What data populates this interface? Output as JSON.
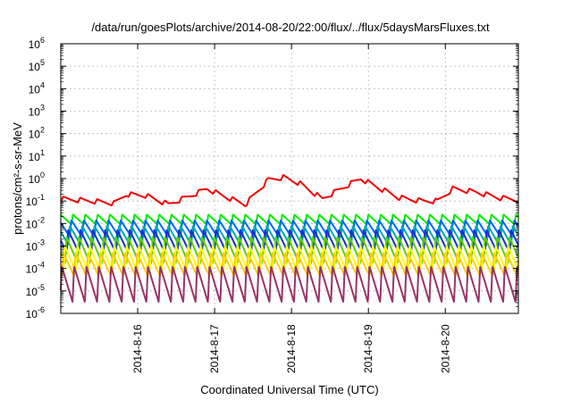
{
  "chart_data": {
    "type": "line",
    "title": "/data/run/goesPlots/archive/2014-08-20/22:00/flux/../flux/5daysMarsFluxes.txt",
    "xlabel": "Coordinated Universal Time (UTC)",
    "ylabel": "protons/cm²-s-sr-MeV",
    "x_unit": "days (2014-08)",
    "xlim": [
      15.0,
      20.95
    ],
    "ylim_log10": [
      -6,
      6
    ],
    "log_y": true,
    "grid": true,
    "x_ticks": [
      {
        "x": 16,
        "label": "2014-8-16"
      },
      {
        "x": 17,
        "label": "2014-8-17"
      },
      {
        "x": 18,
        "label": "2014-8-18"
      },
      {
        "x": 19,
        "label": "2014-8-19"
      },
      {
        "x": 20,
        "label": "2014-8-20"
      }
    ],
    "y_ticks": [
      {
        "exp": -6,
        "base": "10",
        "sup": "-6"
      },
      {
        "exp": -5,
        "base": "10",
        "sup": "-5"
      },
      {
        "exp": -4,
        "base": "10",
        "sup": "-4"
      },
      {
        "exp": -3,
        "base": "10",
        "sup": "-3"
      },
      {
        "exp": -2,
        "base": "10",
        "sup": "-2"
      },
      {
        "exp": -1,
        "base": "10",
        "sup": "-1"
      },
      {
        "exp": 0,
        "base": "10",
        "sup": "0"
      },
      {
        "exp": 1,
        "base": "10",
        "sup": "1"
      },
      {
        "exp": 2,
        "base": "10",
        "sup": "2"
      },
      {
        "exp": 3,
        "base": "10",
        "sup": "3"
      },
      {
        "exp": 4,
        "base": "10",
        "sup": "4"
      },
      {
        "exp": 5,
        "base": "10",
        "sup": "5"
      },
      {
        "exp": 6,
        "base": "10",
        "sup": "6"
      }
    ],
    "series": [
      {
        "color": "#ee0000",
        "style": "smooth",
        "period": 0.22,
        "amp": 0.22,
        "x": [
          15.0,
          15.4,
          15.7,
          15.85,
          16.1,
          16.4,
          16.7,
          16.9,
          17.1,
          17.4,
          17.7,
          17.9,
          18.1,
          18.4,
          18.7,
          18.9,
          19.1,
          19.4,
          19.7,
          19.9,
          20.1,
          20.4,
          20.7,
          20.95
        ],
        "y_log10": [
          -0.9,
          -1.0,
          -1.1,
          -0.7,
          -0.75,
          -1.15,
          -0.75,
          -0.45,
          -0.75,
          -1.15,
          -0.05,
          0.05,
          -0.2,
          -0.9,
          -0.35,
          0.0,
          -0.35,
          -0.85,
          -1.0,
          -1.0,
          -0.45,
          -0.6,
          -0.85,
          -0.95
        ]
      },
      {
        "color": "#00ee00",
        "style": "sawtooth",
        "period": 0.16,
        "low": -2.05,
        "high": -1.6
      },
      {
        "color": "#0066ff",
        "style": "sawtooth",
        "period": 0.16,
        "low": -2.6,
        "high": -1.85
      },
      {
        "color": "#00aaaa",
        "style": "sawtooth",
        "period": 0.16,
        "low": -2.95,
        "high": -2.1
      },
      {
        "color": "#1133cc",
        "style": "sawtooth",
        "period": 0.16,
        "low": -3.3,
        "high": -2.3
      },
      {
        "color": "#66cc00",
        "style": "sawtooth",
        "period": 0.16,
        "low": -3.75,
        "high": -2.6
      },
      {
        "color": "#ffff00",
        "style": "sawtooth",
        "period": 0.16,
        "low": -4.15,
        "high": -3.0
      },
      {
        "color": "#ffcc00",
        "style": "sawtooth",
        "period": 0.16,
        "low": -4.35,
        "high": -3.3
      },
      {
        "color": "#993366",
        "style": "sawtooth",
        "period": 0.16,
        "low": -5.5,
        "high": -3.9
      }
    ]
  }
}
